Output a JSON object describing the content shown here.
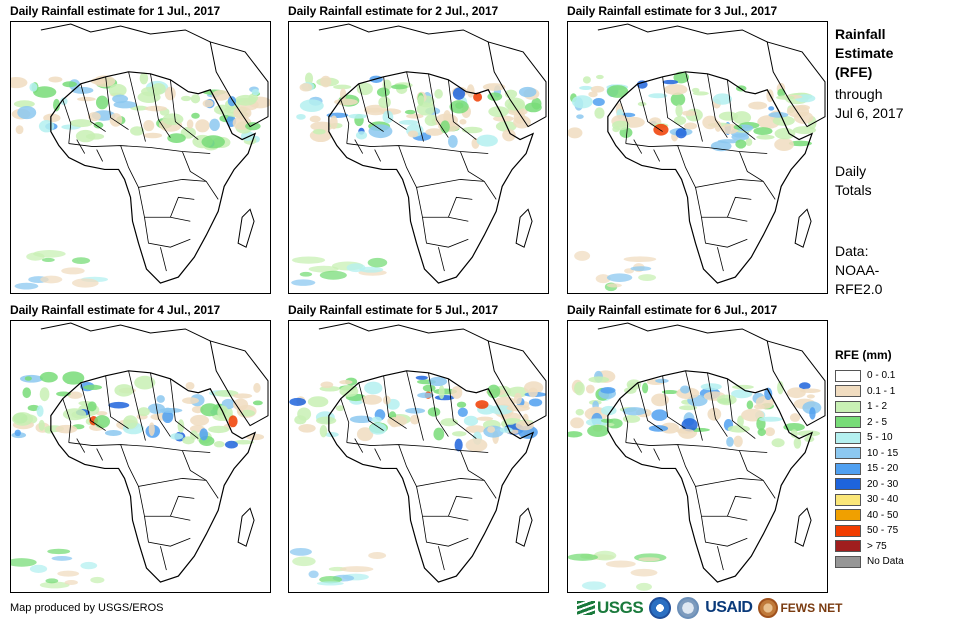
{
  "panels": [
    {
      "title": "Daily Rainfall estimate for 1 Jul., 2017",
      "rain_seed": 1
    },
    {
      "title": "Daily Rainfall estimate for 2 Jul., 2017",
      "rain_seed": 2
    },
    {
      "title": "Daily Rainfall estimate for 3 Jul., 2017",
      "rain_seed": 3
    },
    {
      "title": "Daily Rainfall estimate for 4 Jul., 2017",
      "rain_seed": 4
    },
    {
      "title": "Daily Rainfall estimate for 5 Jul., 2017",
      "rain_seed": 5
    },
    {
      "title": "Daily Rainfall estimate for 6 Jul., 2017",
      "rain_seed": 6
    }
  ],
  "sidebar": {
    "heading_line1": "Rainfall",
    "heading_line2": "Estimate",
    "heading_line3": "(RFE)",
    "through_line1": "through",
    "through_line2": "Jul 6, 2017",
    "totals_line1": "Daily",
    "totals_line2": "Totals",
    "data_line1": "Data:",
    "data_line2": "NOAA-",
    "data_line3": "RFE2.0"
  },
  "legend": {
    "title": "RFE (mm)",
    "items": [
      {
        "label": "0 - 0.1",
        "color": "#ffffff"
      },
      {
        "label": "0.1 - 1",
        "color": "#f0dcc0"
      },
      {
        "label": "1 - 2",
        "color": "#c8f0b4"
      },
      {
        "label": "2 - 5",
        "color": "#78dc78"
      },
      {
        "label": "5 - 10",
        "color": "#b4f0f0"
      },
      {
        "label": "10 - 15",
        "color": "#8cc8f0"
      },
      {
        "label": "15 - 20",
        "color": "#50a0f0"
      },
      {
        "label": "20 - 30",
        "color": "#1e64dc"
      },
      {
        "label": "30 - 40",
        "color": "#fae678"
      },
      {
        "label": "40 - 50",
        "color": "#f0a000"
      },
      {
        "label": "50 - 75",
        "color": "#f03c00"
      },
      {
        "label": "> 75",
        "color": "#a01e1e"
      },
      {
        "label": "No Data",
        "color": "#969696"
      }
    ]
  },
  "footer": {
    "credit": "Map produced by USGS/EROS",
    "logo_usgs": "USGS",
    "logo_usaid": "USAID",
    "logo_fews": "FEWS NET"
  }
}
